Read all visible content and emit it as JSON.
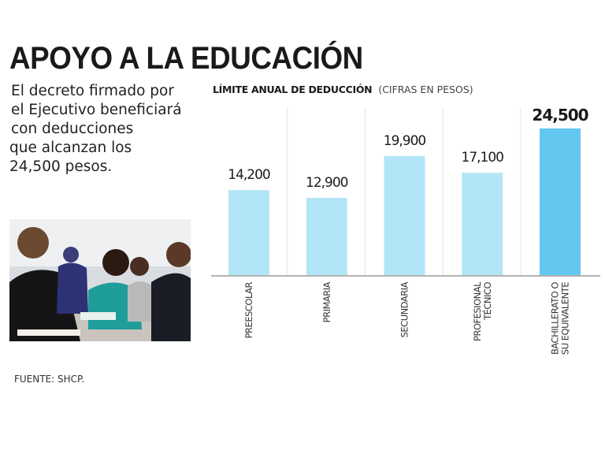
{
  "headline": "APOYO A LA EDUCACIÓN",
  "intro_lines": [
    "El decreto firmado por",
    "el Ejecutivo beneficiará",
    "con deducciones",
    "que alcanzan los",
    "24,500 pesos."
  ],
  "source": "FUENTE: SHCP.",
  "colors": {
    "bar": "#b3e5f8",
    "highlight": "#62c8f0",
    "axis": "#9a9a9a",
    "grid": "#e4e4e4"
  },
  "chart_data": {
    "type": "bar",
    "title": "LÍMITE ANUAL DE DEDUCCIÓN",
    "subtitle": "(CIFRAS EN PESOS)",
    "categories": [
      [
        "PREESCOLAR"
      ],
      [
        "PRIMARIA"
      ],
      [
        "SECUNDARIA"
      ],
      [
        "PROFESIONAL",
        "TÉCNICO"
      ],
      [
        "BACHILLERATO O",
        "SU EQUIVALENTE"
      ]
    ],
    "values": [
      14200,
      12900,
      19900,
      17100,
      24500
    ],
    "value_labels": [
      "14,200",
      "12,900",
      "19,900",
      "17,100",
      "24,500"
    ],
    "highlight_index": 4,
    "xlabel": "",
    "ylabel": "",
    "ylim": [
      0,
      24500
    ],
    "grid": false
  }
}
